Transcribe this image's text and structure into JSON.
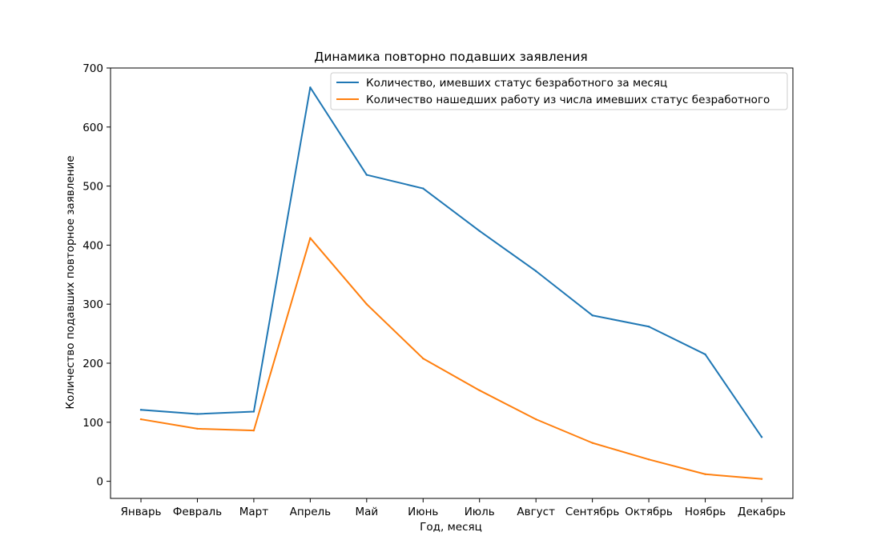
{
  "chart_data": {
    "type": "line",
    "title": "Динамика повторно подавших заявления",
    "xlabel": "Год, месяц",
    "ylabel": "Количество подавших повторное заявление",
    "categories": [
      "Январь",
      "Февраль",
      "Март",
      "Апрель",
      "Май",
      "Июнь",
      "Июль",
      "Август",
      "Сентябрь",
      "Октябрь",
      "Ноябрь",
      "Декабрь"
    ],
    "yticks": [
      0,
      100,
      200,
      300,
      400,
      500,
      600,
      700
    ],
    "ylim": [
      -29,
      700
    ],
    "grid": false,
    "legend_position": "top-right",
    "series": [
      {
        "name": "Количество, имевших статус безработного за месяц",
        "color": "#1f77b4",
        "values": [
          121,
          114,
          118,
          667,
          519,
          496,
          424,
          356,
          281,
          262,
          215,
          75
        ]
      },
      {
        "name": "Количество нашедших работу из числа имевших статус безработного",
        "color": "#ff7f0e",
        "values": [
          105,
          89,
          86,
          412,
          300,
          208,
          154,
          105,
          65,
          37,
          12,
          4
        ]
      }
    ]
  }
}
